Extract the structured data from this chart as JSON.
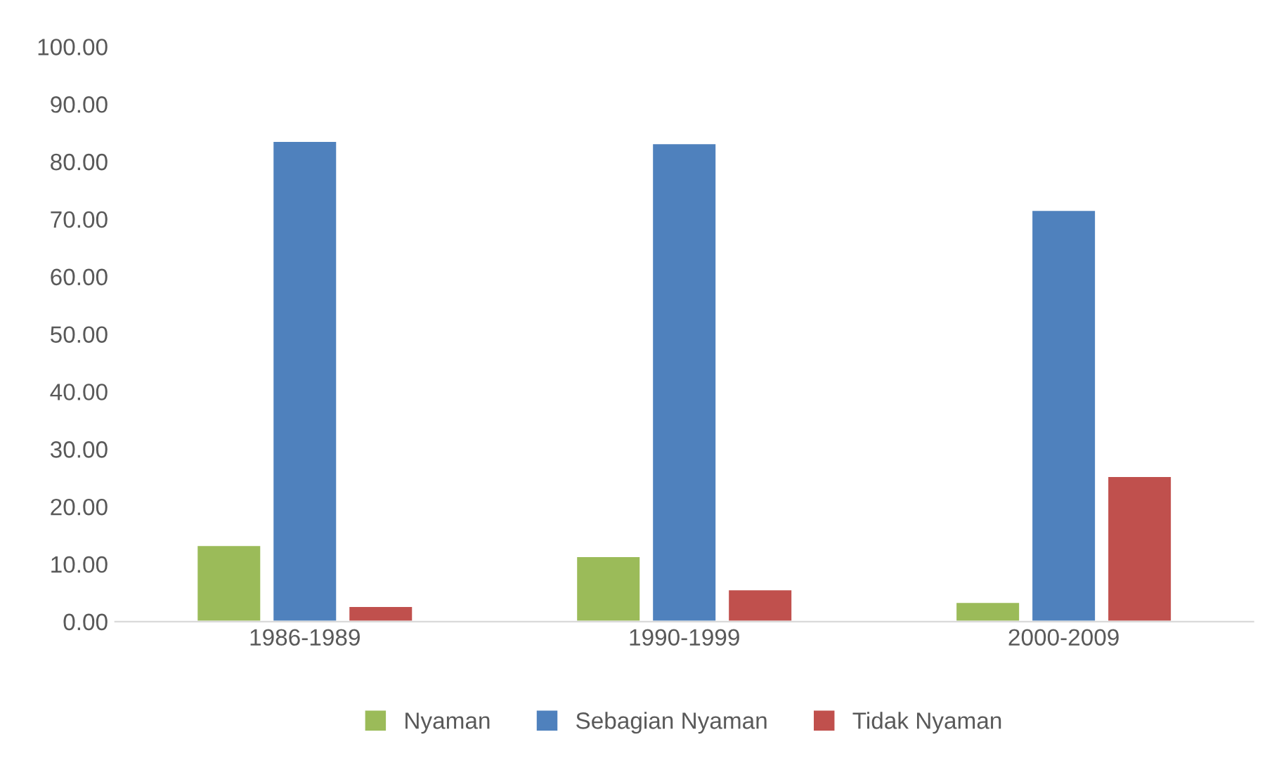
{
  "chart_data": {
    "type": "bar",
    "categories": [
      "1986-1989",
      "1990-1999",
      "2000-2009"
    ],
    "series": [
      {
        "name": "Nyaman",
        "color": "#9bbb59",
        "values": [
          13.3,
          11.4,
          3.4
        ]
      },
      {
        "name": "Sebagian Nyaman",
        "color": "#4f81bd",
        "values": [
          83.6,
          83.2,
          71.6
        ]
      },
      {
        "name": "Tidak Nyaman",
        "color": "#c0504d",
        "values": [
          2.7,
          5.6,
          25.3
        ]
      }
    ],
    "ylim": [
      0,
      100
    ],
    "yticks": [
      {
        "value": 0,
        "label": "0.00"
      },
      {
        "value": 10,
        "label": "10.00"
      },
      {
        "value": 20,
        "label": "20.00"
      },
      {
        "value": 30,
        "label": "30.00"
      },
      {
        "value": 40,
        "label": "40.00"
      },
      {
        "value": 50,
        "label": "50.00"
      },
      {
        "value": 60,
        "label": "60.00"
      },
      {
        "value": 70,
        "label": "70.00"
      },
      {
        "value": 80,
        "label": "80.00"
      },
      {
        "value": 90,
        "label": "90.00"
      },
      {
        "value": 100,
        "label": "100.00"
      }
    ],
    "grid": false,
    "legend": "bottom"
  }
}
